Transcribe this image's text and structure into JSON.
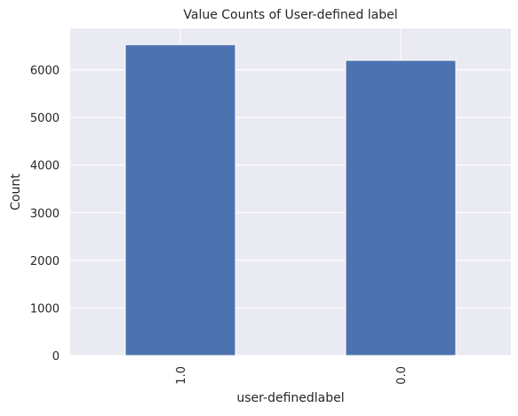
{
  "chart_data": {
    "type": "bar",
    "title": "Value Counts of User-defined label",
    "xlabel": "user-definedlabel",
    "ylabel": "Count",
    "categories": [
      "1.0",
      "0.0"
    ],
    "values": [
      6530,
      6200
    ],
    "ylim": [
      0,
      6870
    ],
    "yticks": [
      0,
      1000,
      2000,
      3000,
      4000,
      5000,
      6000
    ],
    "ytick_labels": [
      "0",
      "1000",
      "2000",
      "3000",
      "4000",
      "5000",
      "6000"
    ],
    "grid": true,
    "legend": "none",
    "colors": {
      "bar": "#4c72b0",
      "background": "#eaeaf2",
      "grid": "#ffffff"
    }
  }
}
